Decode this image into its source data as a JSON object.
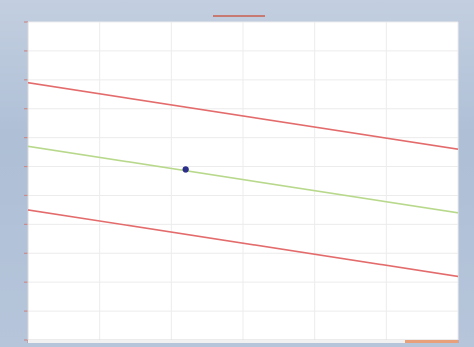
{
  "window": {
    "title": ""
  },
  "chart_data": {
    "type": "line",
    "title": "",
    "xlabel": "",
    "ylabel": "",
    "xlim": [
      0,
      6
    ],
    "ylim": [
      0,
      11
    ],
    "x_ticks": [
      0,
      1,
      2,
      3,
      4,
      5,
      6
    ],
    "y_ticks": [
      0,
      1,
      2,
      3,
      4,
      5,
      6,
      7,
      8,
      9,
      10,
      11
    ],
    "grid": true,
    "legend": "none",
    "series": [
      {
        "x": [
          0,
          6
        ],
        "y": [
          8.9,
          6.6
        ],
        "color": "#e46b6b"
      },
      {
        "x": [
          0,
          6
        ],
        "y": [
          6.7,
          4.4
        ],
        "color": "#b8d98c"
      },
      {
        "x": [
          0,
          6
        ],
        "y": [
          4.5,
          2.2
        ],
        "color": "#e46b6b"
      }
    ],
    "points": [
      {
        "x": 2.2,
        "y": 5.9,
        "color": "#2b2f8a"
      }
    ],
    "colors": {
      "frame": "#b6c5da",
      "plot_background": "#ffffff",
      "grid": "#ececec",
      "tick": "#c98b8b",
      "title_bar": "#c77a72",
      "bottom_strip": "#e8a07a"
    }
  }
}
